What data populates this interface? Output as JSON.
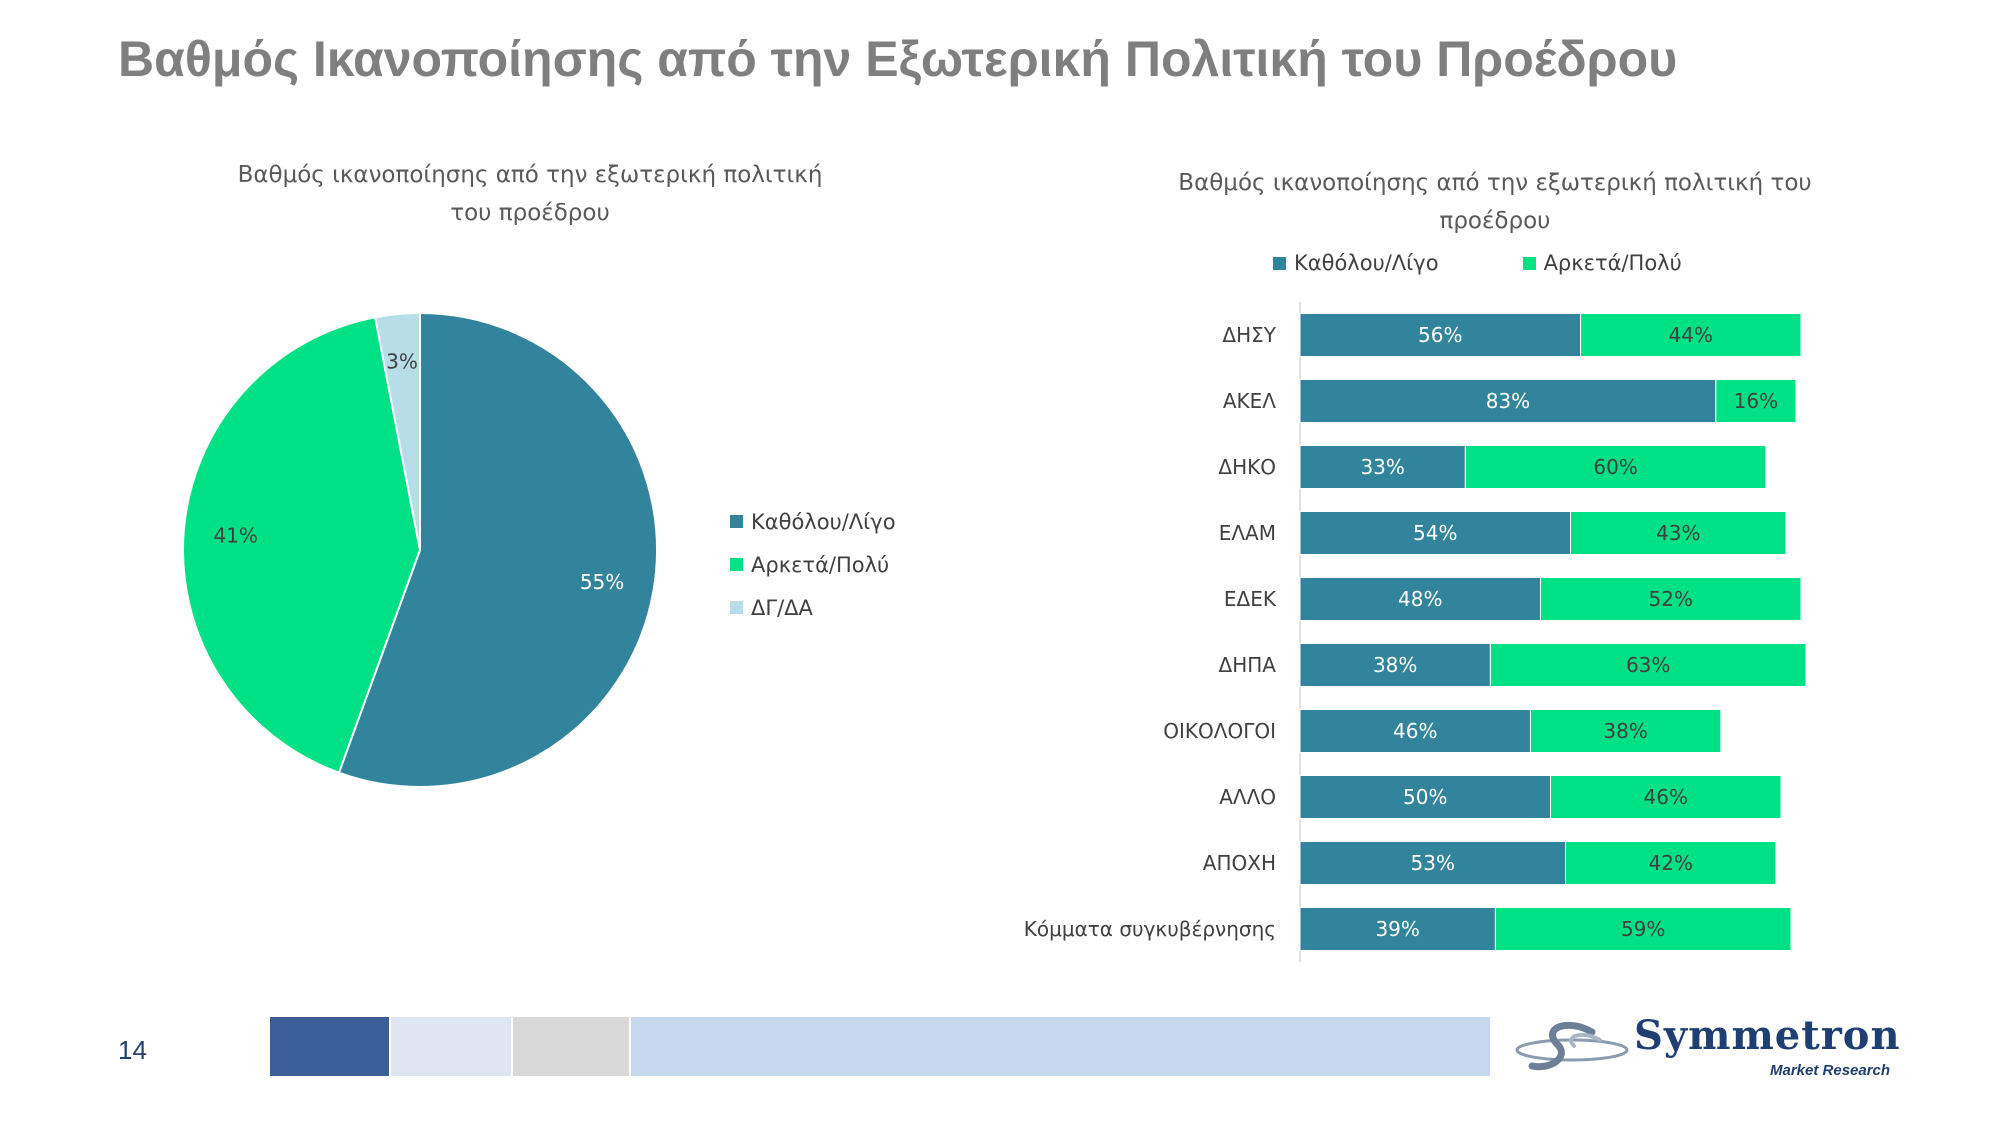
{
  "page": {
    "title": "Βαθμός Ικανοποίησης από την Εξωτερική Πολιτική του Προέδρου",
    "page_number": "14",
    "logo": {
      "name": "Symmetron",
      "subtitle": "Market Research"
    }
  },
  "colors": {
    "dark_teal": "#31849b",
    "green": "#00e084",
    "light_blue": "#b7dde8",
    "title_gray": "#7f7f7f",
    "footer": [
      "#3b5e97",
      "#dde6f1",
      "#d9d9d9",
      "#c5d8ee"
    ]
  },
  "chart_data": [
    {
      "type": "pie",
      "title_lines": [
        "Βαθμός ικανοποίησης από την εξωτερική πολιτική",
        "του προέδρου"
      ],
      "slices": [
        {
          "label": "Καθόλου/Λίγο",
          "value": 55,
          "display": "55%",
          "color": "#31849b"
        },
        {
          "label": "Αρκετά/Πολύ",
          "value": 41,
          "display": "41%",
          "color": "#00e084"
        },
        {
          "label": "ΔΓ/ΔΑ",
          "value": 3,
          "display": "3%",
          "color": "#b7dde8"
        }
      ],
      "legend": "right"
    },
    {
      "type": "bar",
      "orientation": "horizontal",
      "stacked": true,
      "title_lines": [
        "Βαθμός ικανοποίησης από την εξωτερική πολιτική του",
        "προέδρου"
      ],
      "legend": "top",
      "categories": [
        "ΔΗΣΥ",
        "ΑΚΕΛ",
        "ΔΗΚΟ",
        "ΕΛΑΜ",
        "ΕΔΕΚ",
        "ΔΗΠΑ",
        "ΟΙΚΟΛΟΓΟΙ",
        "ΑΛΛΟ",
        "ΑΠΟΧΗ",
        "Κόμματα συγκυβέρνησης"
      ],
      "series": [
        {
          "name": "Καθόλου/Λίγο",
          "color": "#31849b",
          "values": [
            56,
            83,
            33,
            54,
            48,
            38,
            46,
            50,
            53,
            39
          ]
        },
        {
          "name": "Αρκετά/Πολύ",
          "color": "#00e084",
          "values": [
            44,
            16,
            60,
            43,
            52,
            63,
            38,
            46,
            42,
            59
          ]
        }
      ],
      "xlim": [
        0,
        100
      ]
    }
  ]
}
